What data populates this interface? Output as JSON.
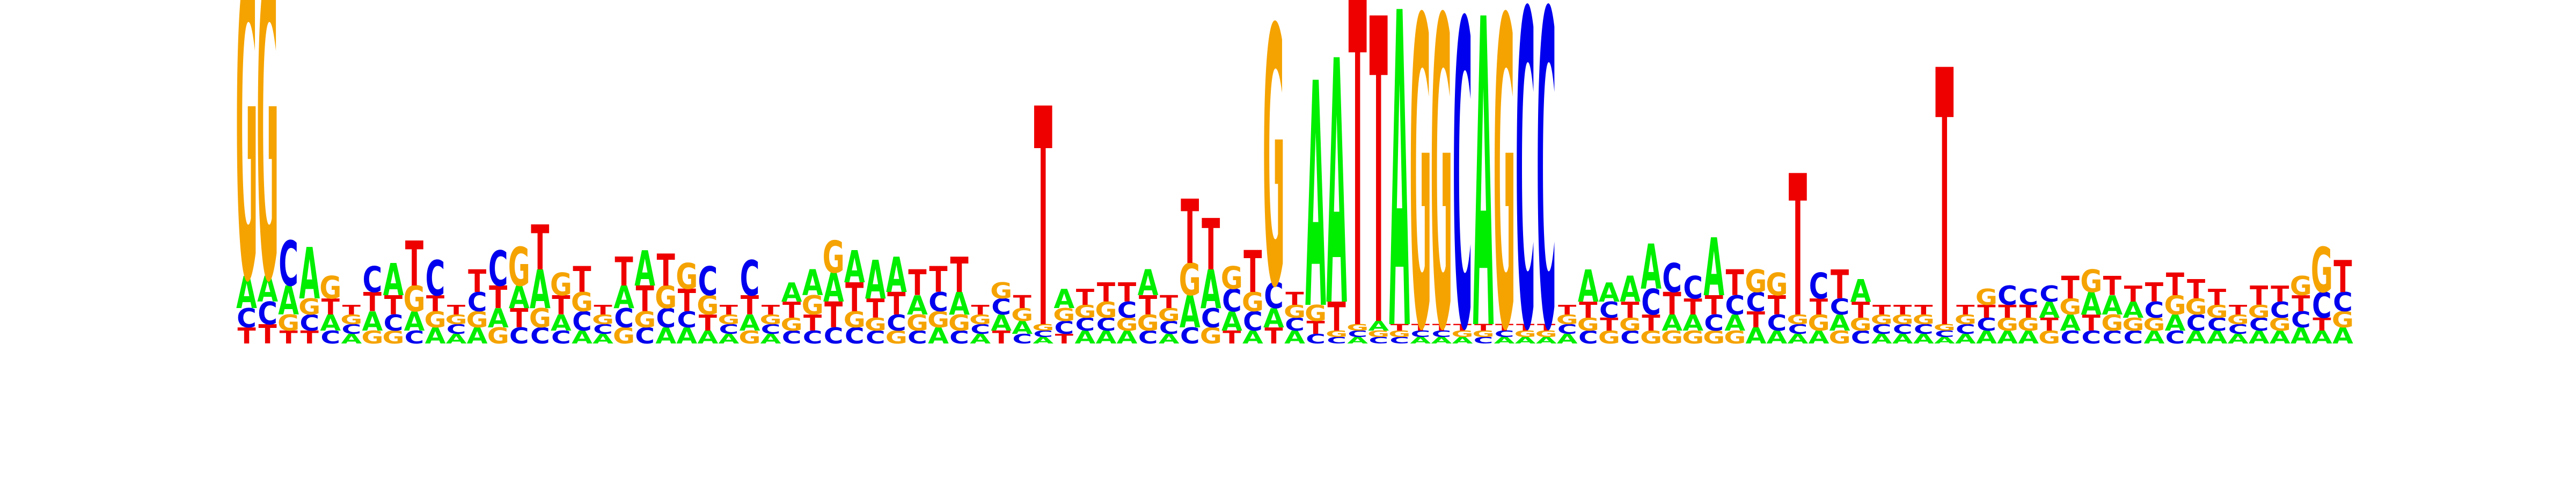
{
  "logo": {
    "alphabet": [
      "A",
      "C",
      "G",
      "T"
    ],
    "colors": {
      "A": "#00ee00",
      "C": "#0000ee",
      "G": "#f5a300",
      "T": "#ee0000"
    },
    "max_bits": 2,
    "positions": [
      {
        "A": 0.1,
        "C": 0.06,
        "G": 0.95,
        "T": 0.05
      },
      {
        "A": 0.08,
        "C": 0.07,
        "G": 0.95,
        "T": 0.06
      },
      {
        "A": 0.09,
        "C": 0.14,
        "G": 0.05,
        "T": 0.04
      },
      {
        "A": 0.16,
        "C": 0.05,
        "G": 0.05,
        "T": 0.04
      },
      {
        "A": 0.05,
        "C": 0.04,
        "G": 0.07,
        "T": 0.05
      },
      {
        "A": 0.03,
        "C": 0.03,
        "G": 0.03,
        "T": 0.03
      },
      {
        "A": 0.06,
        "C": 0.08,
        "G": 0.04,
        "T": 0.06
      },
      {
        "A": 0.1,
        "C": 0.05,
        "G": 0.04,
        "T": 0.06
      },
      {
        "A": 0.06,
        "C": 0.04,
        "G": 0.08,
        "T": 0.14
      },
      {
        "A": 0.05,
        "C": 0.11,
        "G": 0.05,
        "T": 0.05
      },
      {
        "A": 0.03,
        "C": 0.03,
        "G": 0.03,
        "T": 0.03
      },
      {
        "A": 0.05,
        "C": 0.06,
        "G": 0.05,
        "T": 0.07
      },
      {
        "A": 0.06,
        "C": 0.11,
        "G": 0.05,
        "T": 0.07
      },
      {
        "A": 0.07,
        "C": 0.05,
        "G": 0.12,
        "T": 0.06
      },
      {
        "A": 0.12,
        "C": 0.05,
        "G": 0.06,
        "T": 0.14
      },
      {
        "A": 0.05,
        "C": 0.04,
        "G": 0.07,
        "T": 0.06
      },
      {
        "A": 0.04,
        "C": 0.06,
        "G": 0.06,
        "T": 0.08
      },
      {
        "A": 0.03,
        "C": 0.03,
        "G": 0.03,
        "T": 0.03
      },
      {
        "A": 0.07,
        "C": 0.06,
        "G": 0.05,
        "T": 0.09
      },
      {
        "A": 0.11,
        "C": 0.05,
        "G": 0.05,
        "T": 0.08
      },
      {
        "A": 0.05,
        "C": 0.06,
        "G": 0.07,
        "T": 0.1
      },
      {
        "A": 0.05,
        "C": 0.05,
        "G": 0.08,
        "T": 0.07
      },
      {
        "A": 0.04,
        "C": 0.09,
        "G": 0.06,
        "T": 0.05
      },
      {
        "A": 0.03,
        "C": 0.03,
        "G": 0.03,
        "T": 0.03
      },
      {
        "A": 0.05,
        "C": 0.11,
        "G": 0.04,
        "T": 0.06
      },
      {
        "A": 0.03,
        "C": 0.03,
        "G": 0.03,
        "T": 0.03
      },
      {
        "A": 0.06,
        "C": 0.04,
        "G": 0.04,
        "T": 0.05
      },
      {
        "A": 0.08,
        "C": 0.04,
        "G": 0.06,
        "T": 0.05
      },
      {
        "A": 0.09,
        "C": 0.05,
        "G": 0.1,
        "T": 0.08
      },
      {
        "A": 0.1,
        "C": 0.05,
        "G": 0.05,
        "T": 0.09
      },
      {
        "A": 0.12,
        "C": 0.04,
        "G": 0.04,
        "T": 0.06
      },
      {
        "A": 0.11,
        "C": 0.05,
        "G": 0.04,
        "T": 0.07
      },
      {
        "A": 0.06,
        "C": 0.04,
        "G": 0.05,
        "T": 0.08
      },
      {
        "A": 0.05,
        "C": 0.06,
        "G": 0.05,
        "T": 0.08
      },
      {
        "A": 0.07,
        "C": 0.04,
        "G": 0.05,
        "T": 0.11
      },
      {
        "A": 0.03,
        "C": 0.03,
        "G": 0.03,
        "T": 0.03
      },
      {
        "A": 0.05,
        "C": 0.05,
        "G": 0.05,
        "T": 0.04
      },
      {
        "A": 0.04,
        "C": 0.03,
        "G": 0.04,
        "T": 0.04
      },
      {
        "A": 0.02,
        "C": 0.02,
        "G": 0.02,
        "T": 0.68
      },
      {
        "A": 0.06,
        "C": 0.04,
        "G": 0.04,
        "T": 0.03
      },
      {
        "A": 0.04,
        "C": 0.04,
        "G": 0.04,
        "T": 0.05
      },
      {
        "A": 0.04,
        "C": 0.04,
        "G": 0.05,
        "T": 0.06
      },
      {
        "A": 0.04,
        "C": 0.05,
        "G": 0.04,
        "T": 0.06
      },
      {
        "A": 0.08,
        "C": 0.04,
        "G": 0.05,
        "T": 0.06
      },
      {
        "A": 0.03,
        "C": 0.04,
        "G": 0.04,
        "T": 0.04
      },
      {
        "A": 0.1,
        "C": 0.05,
        "G": 0.1,
        "T": 0.2
      },
      {
        "A": 0.12,
        "C": 0.06,
        "G": 0.05,
        "T": 0.16
      },
      {
        "A": 0.06,
        "C": 0.07,
        "G": 0.07,
        "T": 0.04
      },
      {
        "A": 0.04,
        "C": 0.06,
        "G": 0.06,
        "T": 0.13
      },
      {
        "A": 0.06,
        "C": 0.08,
        "G": 0.8,
        "T": 0.05
      },
      {
        "A": 0.04,
        "C": 0.04,
        "G": 0.04,
        "T": 0.04
      },
      {
        "A": 0.7,
        "C": 0.03,
        "G": 0.05,
        "T": 0.04
      },
      {
        "A": 0.76,
        "C": 0.02,
        "G": 0.02,
        "T": 0.09
      },
      {
        "A": 0.02,
        "C": 0.02,
        "G": 0.02,
        "T": 1.05
      },
      {
        "A": 0.03,
        "C": 0.02,
        "G": 0.02,
        "T": 0.95
      },
      {
        "A": 0.98,
        "C": 0.02,
        "G": 0.02,
        "T": 0.02
      },
      {
        "A": 0.02,
        "C": 0.02,
        "G": 0.96,
        "T": 0.02
      },
      {
        "A": 0.02,
        "C": 0.02,
        "G": 0.96,
        "T": 0.02
      },
      {
        "A": 0.02,
        "C": 0.95,
        "G": 0.02,
        "T": 0.02
      },
      {
        "A": 0.96,
        "C": 0.02,
        "G": 0.02,
        "T": 0.02
      },
      {
        "A": 0.02,
        "C": 0.02,
        "G": 0.96,
        "T": 0.02
      },
      {
        "A": 0.02,
        "C": 0.98,
        "G": 0.02,
        "T": 0.02
      },
      {
        "A": 0.02,
        "C": 0.98,
        "G": 0.02,
        "T": 0.02
      },
      {
        "A": 0.03,
        "C": 0.03,
        "G": 0.03,
        "T": 0.03
      },
      {
        "A": 0.1,
        "C": 0.04,
        "G": 0.04,
        "T": 0.05
      },
      {
        "A": 0.06,
        "C": 0.05,
        "G": 0.04,
        "T": 0.04
      },
      {
        "A": 0.08,
        "C": 0.04,
        "G": 0.04,
        "T": 0.05
      },
      {
        "A": 0.14,
        "C": 0.08,
        "G": 0.04,
        "T": 0.05
      },
      {
        "A": 0.05,
        "C": 0.09,
        "G": 0.04,
        "T": 0.07
      },
      {
        "A": 0.05,
        "C": 0.07,
        "G": 0.04,
        "T": 0.05
      },
      {
        "A": 0.18,
        "C": 0.05,
        "G": 0.04,
        "T": 0.06
      },
      {
        "A": 0.05,
        "C": 0.06,
        "G": 0.04,
        "T": 0.08
      },
      {
        "A": 0.05,
        "C": 0.06,
        "G": 0.07,
        "T": 0.05
      },
      {
        "A": 0.04,
        "C": 0.05,
        "G": 0.07,
        "T": 0.06
      },
      {
        "A": 0.03,
        "C": 0.03,
        "G": 0.03,
        "T": 0.44
      },
      {
        "A": 0.04,
        "C": 0.08,
        "G": 0.05,
        "T": 0.05
      },
      {
        "A": 0.05,
        "C": 0.05,
        "G": 0.04,
        "T": 0.09
      },
      {
        "A": 0.07,
        "C": 0.04,
        "G": 0.04,
        "T": 0.05
      },
      {
        "A": 0.03,
        "C": 0.03,
        "G": 0.03,
        "T": 0.03
      },
      {
        "A": 0.03,
        "C": 0.03,
        "G": 0.03,
        "T": 0.03
      },
      {
        "A": 0.03,
        "C": 0.03,
        "G": 0.03,
        "T": 0.03
      },
      {
        "A": 0.02,
        "C": 0.02,
        "G": 0.02,
        "T": 0.8
      },
      {
        "A": 0.03,
        "C": 0.03,
        "G": 0.03,
        "T": 0.03
      },
      {
        "A": 0.04,
        "C": 0.04,
        "G": 0.05,
        "T": 0.04
      },
      {
        "A": 0.04,
        "C": 0.06,
        "G": 0.04,
        "T": 0.04
      },
      {
        "A": 0.04,
        "C": 0.05,
        "G": 0.04,
        "T": 0.04
      },
      {
        "A": 0.05,
        "C": 0.05,
        "G": 0.04,
        "T": 0.04
      },
      {
        "A": 0.05,
        "C": 0.04,
        "G": 0.05,
        "T": 0.07
      },
      {
        "A": 0.07,
        "C": 0.04,
        "G": 0.07,
        "T": 0.05
      },
      {
        "A": 0.06,
        "C": 0.04,
        "G": 0.05,
        "T": 0.06
      },
      {
        "A": 0.05,
        "C": 0.04,
        "G": 0.04,
        "T": 0.05
      },
      {
        "A": 0.04,
        "C": 0.05,
        "G": 0.04,
        "T": 0.06
      },
      {
        "A": 0.05,
        "C": 0.04,
        "G": 0.06,
        "T": 0.07
      },
      {
        "A": 0.04,
        "C": 0.05,
        "G": 0.05,
        "T": 0.06
      },
      {
        "A": 0.04,
        "C": 0.04,
        "G": 0.04,
        "T": 0.05
      },
      {
        "A": 0.03,
        "C": 0.03,
        "G": 0.03,
        "T": 0.03
      },
      {
        "A": 0.04,
        "C": 0.04,
        "G": 0.04,
        "T": 0.06
      },
      {
        "A": 0.04,
        "C": 0.05,
        "G": 0.04,
        "T": 0.05
      },
      {
        "A": 0.05,
        "C": 0.05,
        "G": 0.06,
        "T": 0.05
      },
      {
        "A": 0.04,
        "C": 0.08,
        "G": 0.14,
        "T": 0.04
      },
      {
        "A": 0.05,
        "C": 0.06,
        "G": 0.05,
        "T": 0.1
      }
    ]
  }
}
